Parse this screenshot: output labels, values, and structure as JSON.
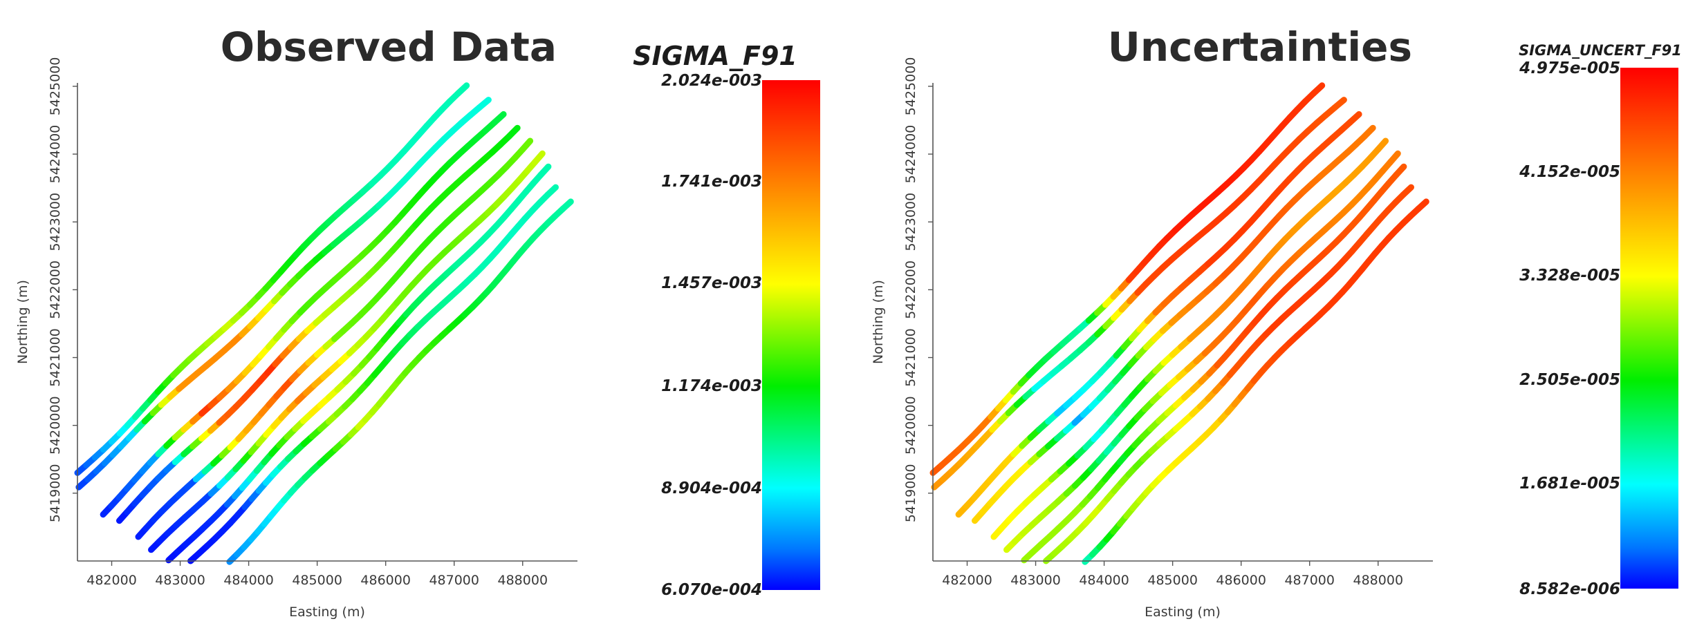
{
  "chart_data": [
    {
      "type": "scatter",
      "title": "Observed Data",
      "xlabel": "Easting (m)",
      "ylabel": "Northing (m)",
      "xticks": [
        "482000",
        "483000",
        "484000",
        "485000",
        "486000",
        "487000",
        "488000"
      ],
      "yticks": [
        "5419000",
        "5420000",
        "5421000",
        "5422000",
        "5423000",
        "5424000",
        "5425000"
      ],
      "xlim": [
        481500,
        488800
      ],
      "ylim": [
        5418000,
        5425050
      ],
      "colorbar": {
        "title": "SIGMA_F91",
        "min": 0.000607,
        "max": 0.002024,
        "labels": [
          "2.024e-003",
          "1.741e-003",
          "1.457e-003",
          "1.174e-003",
          "8.904e-004",
          "6.070e-004"
        ]
      },
      "series": [
        {
          "start": [
            481500,
            5419300
          ],
          "end": [
            487200,
            5425000
          ],
          "values": [
            0.00072,
            0.00095,
            0.00128,
            0.0014,
            0.0012,
            0.0011,
            0.001,
            0.00098,
            0.001
          ]
        },
        {
          "start": [
            481500,
            5419100
          ],
          "end": [
            487500,
            5424800
          ],
          "values": [
            0.0007,
            0.00088,
            0.0017,
            0.00172,
            0.0013,
            0.0011,
            0.00098,
            0.00096,
            0.00095
          ]
        },
        {
          "start": [
            481850,
            5418700
          ],
          "end": [
            487700,
            5424600
          ],
          "values": [
            0.00066,
            0.00082,
            0.0019,
            0.0015,
            0.00125,
            0.00128,
            0.0012,
            0.00115,
            0.0011
          ]
        },
        {
          "start": [
            482100,
            5418600
          ],
          "end": [
            487900,
            5424400
          ],
          "values": [
            0.00064,
            0.00078,
            0.0018,
            0.00192,
            0.0014,
            0.0013,
            0.0012,
            0.0012,
            0.00115
          ]
        },
        {
          "start": [
            482400,
            5418350
          ],
          "end": [
            488100,
            5424200
          ],
          "values": [
            0.00065,
            0.00072,
            0.0016,
            0.00185,
            0.0013,
            0.00125,
            0.00122,
            0.00125,
            0.0013
          ]
        },
        {
          "start": [
            482600,
            5418150
          ],
          "end": [
            488300,
            5424000
          ],
          "values": [
            0.00064,
            0.0007,
            0.0013,
            0.00175,
            0.0014,
            0.0013,
            0.00128,
            0.00135,
            0.0014
          ]
        },
        {
          "start": [
            482850,
            5418000
          ],
          "end": [
            488400,
            5423800
          ],
          "values": [
            0.00063,
            0.00068,
            0.0011,
            0.0015,
            0.0013,
            0.0011,
            0.00102,
            0.001,
            0.001
          ]
        },
        {
          "start": [
            483150,
            5418000
          ],
          "end": [
            488500,
            5423500
          ],
          "values": [
            0.00063,
            0.00066,
            0.001,
            0.00135,
            0.00118,
            0.00105,
            0.001,
            0.00098,
            0.001
          ]
        },
        {
          "start": [
            483700,
            5418000
          ],
          "end": [
            488700,
            5423300
          ],
          "values": [
            0.0008,
            0.0009,
            0.0011,
            0.0014,
            0.0013,
            0.0012,
            0.0011,
            0.00105,
            0.001
          ]
        }
      ]
    },
    {
      "type": "scatter",
      "title": "Uncertainties",
      "xlabel": "Easting (m)",
      "ylabel": "Northing (m)",
      "xticks": [
        "482000",
        "483000",
        "484000",
        "485000",
        "486000",
        "487000",
        "488000"
      ],
      "yticks": [
        "5419000",
        "5420000",
        "5421000",
        "5422000",
        "5423000",
        "5424000",
        "5425000"
      ],
      "xlim": [
        481500,
        488800
      ],
      "ylim": [
        5418000,
        5425050
      ],
      "colorbar": {
        "title": "SIGMA_UNCERT_F91",
        "min": 8.582e-06,
        "max": 4.975e-05,
        "labels": [
          "4.975e-005",
          "4.152e-005",
          "3.328e-005",
          "2.505e-005",
          "1.681e-005",
          "8.582e-006"
        ]
      },
      "series": [
        {
          "start": [
            481500,
            5419300
          ],
          "end": [
            487200,
            5425000
          ],
          "values": [
            4.4e-05,
            4.2e-05,
            2.4e-05,
            2e-05,
            4.6e-05,
            4.8e-05,
            4.8e-05,
            4.7e-05,
            4.6e-05
          ]
        },
        {
          "start": [
            481500,
            5419100
          ],
          "end": [
            487500,
            5424800
          ],
          "values": [
            4e-05,
            3.8e-05,
            1.8e-05,
            2.2e-05,
            4.5e-05,
            4.6e-05,
            4.6e-05,
            4.5e-05,
            4.4e-05
          ]
        },
        {
          "start": [
            481850,
            5418700
          ],
          "end": [
            487700,
            5424600
          ],
          "values": [
            3.8e-05,
            3.6e-05,
            1.6e-05,
            2e-05,
            4.2e-05,
            4.6e-05,
            4.6e-05,
            4.5e-05,
            4.5e-05
          ]
        },
        {
          "start": [
            482100,
            5418600
          ],
          "end": [
            487900,
            5424400
          ],
          "values": [
            3.6e-05,
            3.4e-05,
            1.5e-05,
            2.4e-05,
            4e-05,
            4.4e-05,
            4.4e-05,
            4.2e-05,
            4.2e-05
          ]
        },
        {
          "start": [
            482400,
            5418350
          ],
          "end": [
            488100,
            5424200
          ],
          "values": [
            3.4e-05,
            3.2e-05,
            1.8e-05,
            2.6e-05,
            4e-05,
            4.2e-05,
            4e-05,
            3.9e-05,
            4e-05
          ]
        },
        {
          "start": [
            482600,
            5418150
          ],
          "end": [
            488300,
            5424000
          ],
          "values": [
            3.2e-05,
            3e-05,
            2e-05,
            3e-05,
            4.2e-05,
            4.4e-05,
            4.2e-05,
            4.1e-05,
            4.2e-05
          ]
        },
        {
          "start": [
            482850,
            5418000
          ],
          "end": [
            488400,
            5423800
          ],
          "values": [
            3e-05,
            3e-05,
            2.4e-05,
            3.2e-05,
            4.4e-05,
            4.6e-05,
            4.5e-05,
            4.4e-05,
            4.4e-05
          ]
        },
        {
          "start": [
            483150,
            5418000
          ],
          "end": [
            488500,
            5423500
          ],
          "values": [
            3e-05,
            3.2e-05,
            2.8e-05,
            3.4e-05,
            4.4e-05,
            4.6e-05,
            4.6e-05,
            4.5e-05,
            4.5e-05
          ]
        },
        {
          "start": [
            483700,
            5418000
          ],
          "end": [
            488700,
            5423300
          ],
          "values": [
            2e-05,
            3e-05,
            3.4e-05,
            3.6e-05,
            4.4e-05,
            4.6e-05,
            4.6e-05,
            4.6e-05,
            4.6e-05
          ]
        }
      ]
    }
  ]
}
